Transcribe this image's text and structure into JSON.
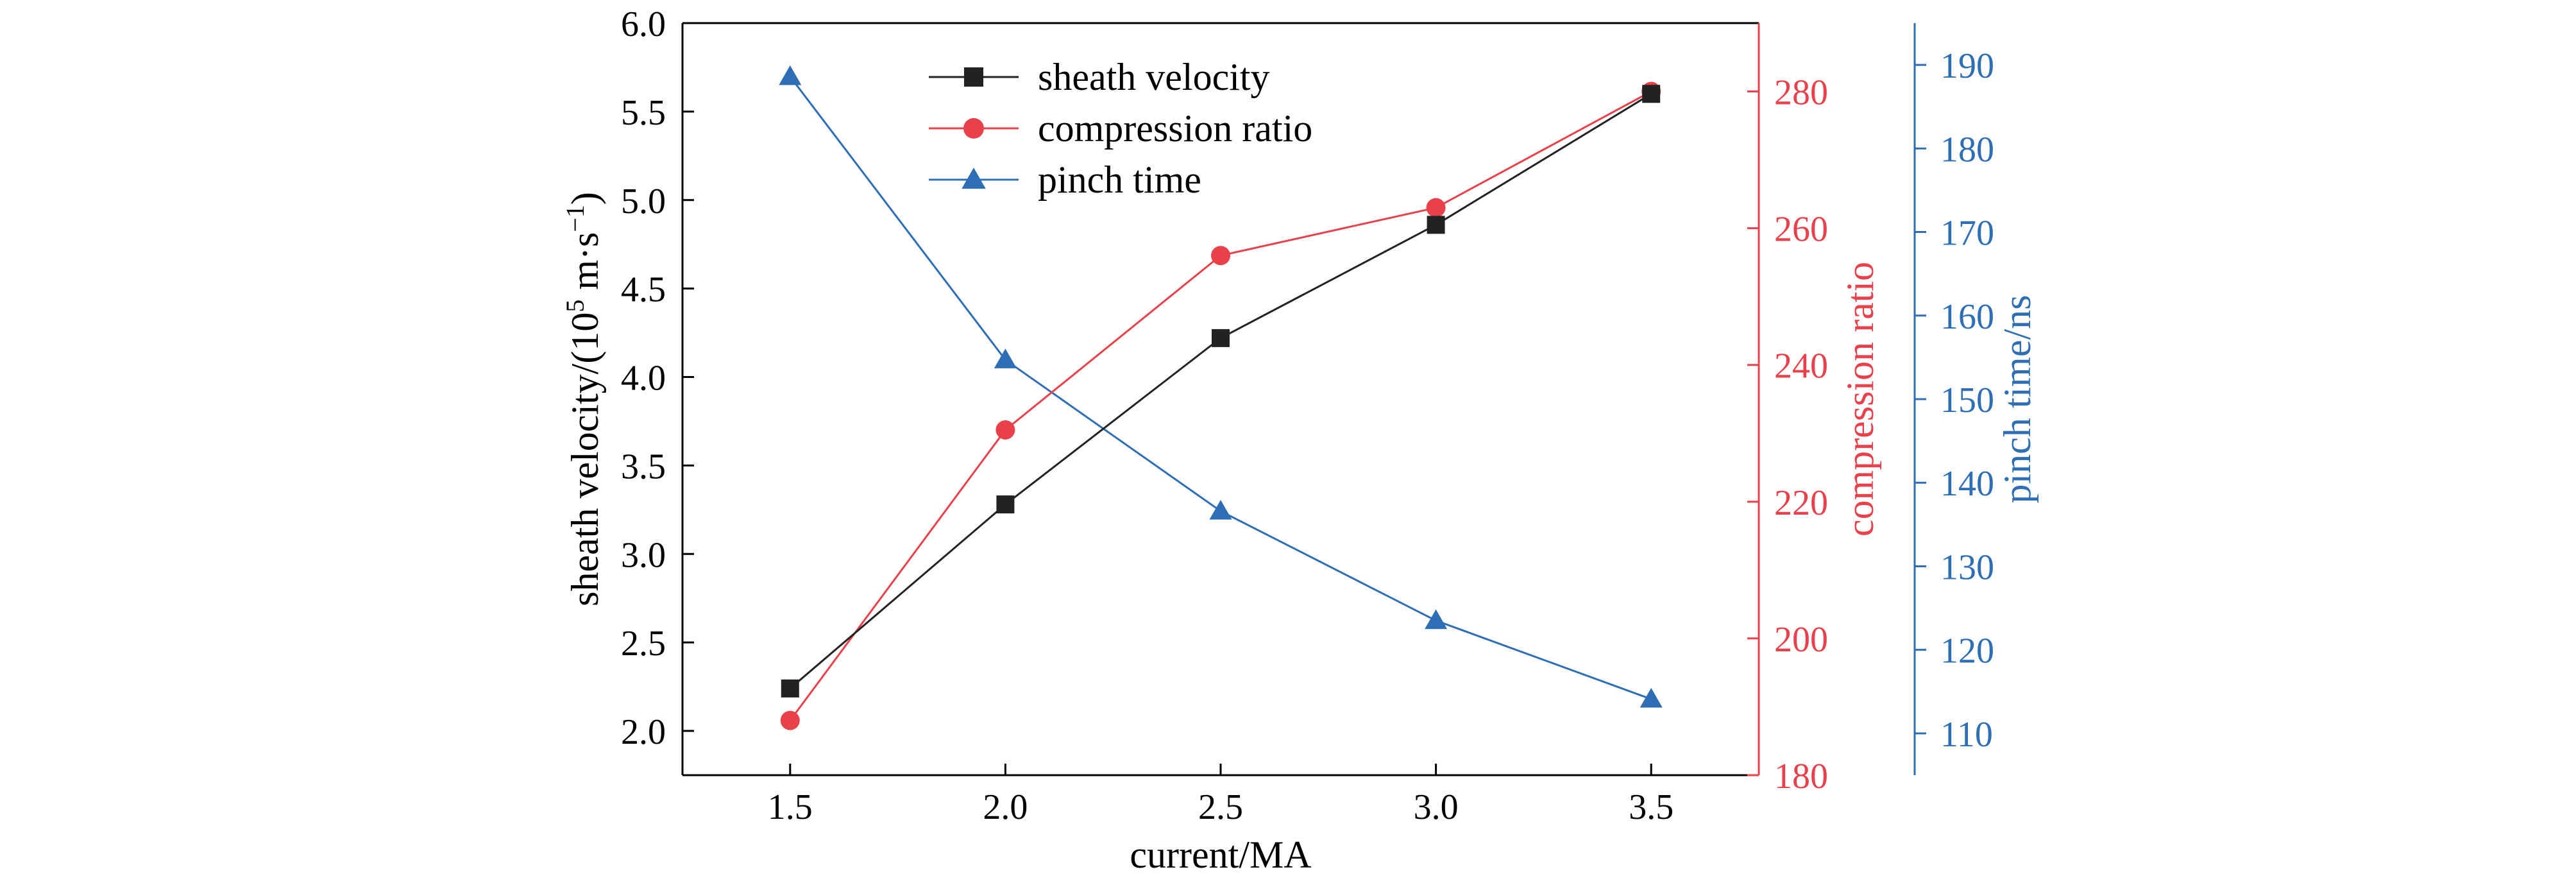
{
  "chart_data": {
    "type": "line",
    "x": [
      1.5,
      2.0,
      2.5,
      3.0,
      3.5
    ],
    "xlabel": "current/MA",
    "xlim": [
      1.25,
      3.75
    ],
    "xticks": [
      "1.5",
      "2.0",
      "2.5",
      "3.0",
      "3.5"
    ],
    "axes": {
      "left": {
        "label_main": "sheath velocity/(10",
        "label_sup1": "5",
        "label_mid": " m·s",
        "label_sup2": "−1",
        "label_end": ")",
        "ylim": [
          1.75,
          6.0
        ],
        "ticks": [
          "2.0",
          "2.5",
          "3.0",
          "3.5",
          "4.0",
          "4.5",
          "5.0",
          "5.5",
          "6.0"
        ],
        "color": "#000000"
      },
      "right1": {
        "label": "compression ratio",
        "ylim": [
          180,
          290
        ],
        "ticks": [
          "180",
          "200",
          "220",
          "240",
          "260",
          "280"
        ],
        "color": "#e8414b"
      },
      "right2": {
        "label": "pinch time/ns",
        "ylim": [
          105,
          195
        ],
        "ticks": [
          "110",
          "120",
          "130",
          "140",
          "150",
          "160",
          "170",
          "180",
          "190"
        ],
        "color": "#2e6eb5"
      }
    },
    "series": [
      {
        "name": "sheath velocity",
        "axis": "left",
        "marker": "square",
        "color": "#222222",
        "values": [
          2.24,
          3.28,
          4.22,
          4.86,
          5.6
        ]
      },
      {
        "name": "compression ratio",
        "axis": "right1",
        "marker": "circle",
        "color": "#e8414b",
        "values": [
          188,
          230.5,
          256,
          263,
          280
        ]
      },
      {
        "name": "pinch time",
        "axis": "right2",
        "marker": "triangle",
        "color": "#2e6eb5",
        "values": [
          188.6,
          154.7,
          136.6,
          123.5,
          114.1
        ]
      }
    ],
    "legend_position": "top-left",
    "grid": false
  }
}
